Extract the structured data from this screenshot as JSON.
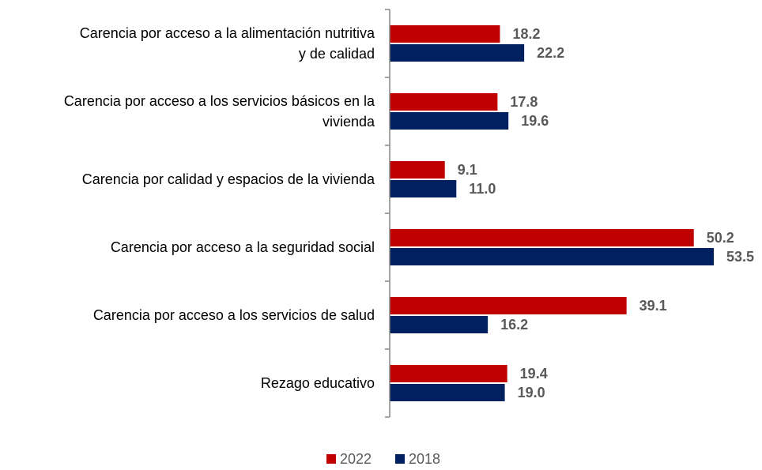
{
  "chart_data": {
    "type": "bar",
    "orientation": "horizontal",
    "categories": [
      "Carencia por acceso a la alimentación nutritiva\ny de calidad",
      "Carencia por acceso a los servicios básicos en la\nvivienda",
      "Carencia por calidad y espacios de la vivienda",
      "Carencia por acceso a la seguridad social",
      "Carencia por acceso a los servicios de salud",
      "Rezago educativo"
    ],
    "series": [
      {
        "name": "2022",
        "color": "#c00000",
        "values": [
          18.2,
          17.8,
          9.1,
          50.2,
          39.1,
          19.4
        ],
        "value_labels": [
          "18.2",
          "17.8",
          "9.1",
          "50.2",
          "39.1",
          "19.4"
        ]
      },
      {
        "name": "2018",
        "color": "#002060",
        "values": [
          22.2,
          19.6,
          11.0,
          53.5,
          16.2,
          19.0
        ],
        "value_labels": [
          "22.2",
          "19.6",
          "11.0",
          "53.5",
          "16.2",
          "19.0"
        ]
      }
    ],
    "legend": "bottom"
  }
}
